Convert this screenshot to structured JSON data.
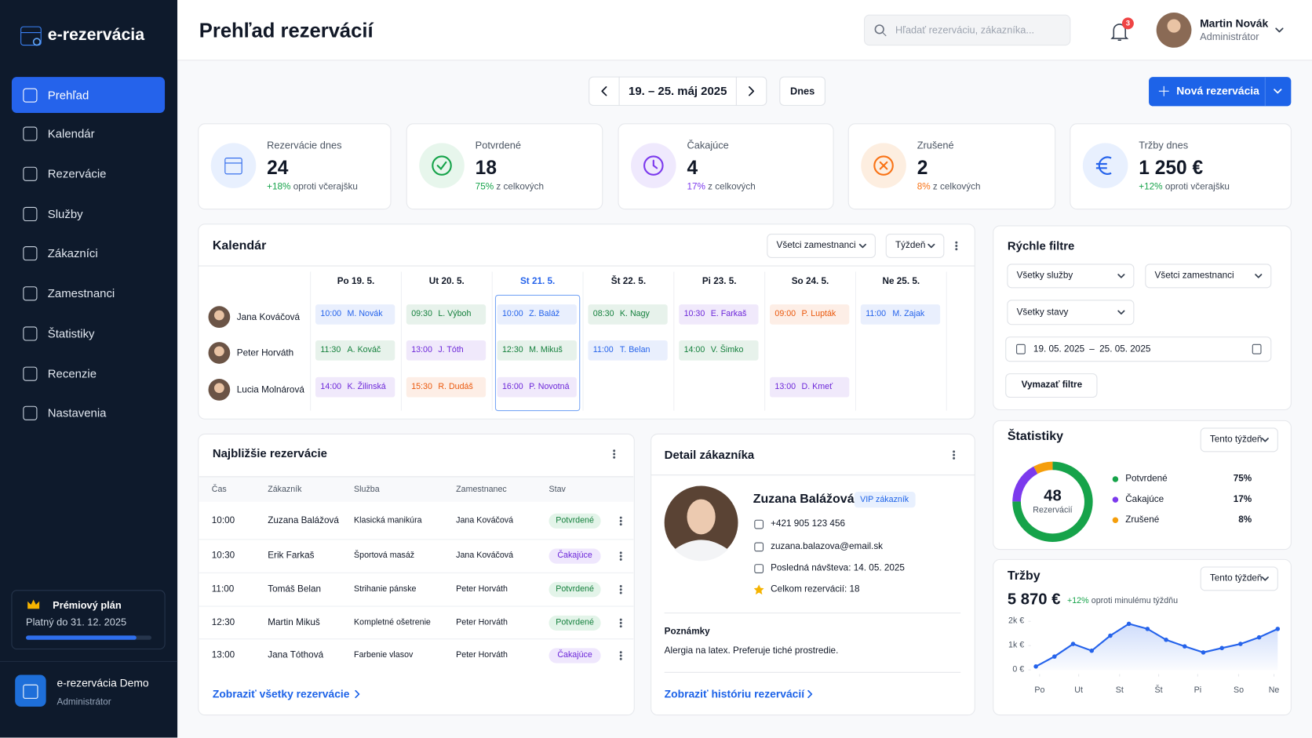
{
  "sidebar": {
    "brand": "e-rezervácia",
    "nav": [
      "Prehľad",
      "Kalendár",
      "Rezervácie",
      "Služby",
      "Zákazníci",
      "Zamestnanci",
      "Štatistiky",
      "Recenzie",
      "Nastavenia"
    ],
    "plan": {
      "title": "Prémiový plán",
      "valid": "Platný do 31. 12. 2025"
    },
    "account": {
      "name": "e-rezervácia Demo",
      "role": "Administrátor"
    }
  },
  "header": {
    "title": "Prehľad rezervácií",
    "search": "Hľadať rezerváciu, zákazníka...",
    "notifications": "3",
    "user": {
      "name": "Martin Novák",
      "role": "Administrátor"
    }
  },
  "toolbar": {
    "range": "19. – 25. máj 2025",
    "today": "Dnes",
    "new": "Nová rezervácia"
  },
  "stats": [
    {
      "label": "Rezervácie dnes",
      "value": "24",
      "delta": "+18%",
      "note": "oproti včerajšku"
    },
    {
      "label": "Potvrdené",
      "value": "18",
      "delta": "75%",
      "note": "z celkových"
    },
    {
      "label": "Čakajúce",
      "value": "4",
      "delta": "17%",
      "note": "z celkových"
    },
    {
      "label": "Zrušené",
      "value": "2",
      "delta": "8%",
      "note": "z celkových"
    },
    {
      "label": "Tržby dnes",
      "value": "1 250 €",
      "delta": "+12%",
      "note": "oproti včerajšku"
    }
  ],
  "calendar": {
    "title": "Kalendár",
    "filters": [
      "Všetci zamestnanci",
      "Týždeň"
    ],
    "days": [
      "Po 19. 5.",
      "Ut 20. 5.",
      "St 21. 5.",
      "Št 22. 5.",
      "Pi 23. 5.",
      "So 24. 5.",
      "Ne 25. 5."
    ],
    "staff": [
      "Jana Kováčová",
      "Peter Horváth",
      "Lucia Molnárová"
    ],
    "events": [
      [
        {
          "time": "10:00",
          "name": "M. Novák",
          "color": "#2563eb"
        },
        {
          "time": "09:30",
          "name": "L. Výboh",
          "color": "#15803d"
        },
        {
          "time": "10:00",
          "name": "Z. Baláž",
          "color": "#2563eb"
        },
        {
          "time": "08:30",
          "name": "K. Nagy",
          "color": "#15803d"
        },
        {
          "time": "10:30",
          "name": "E. Farkaš",
          "color": "#6d28d9"
        },
        {
          "time": "09:00",
          "name": "P. Lupták",
          "color": "#ea580c"
        },
        {
          "time": "11:00",
          "name": "M. Zajak",
          "color": "#2563eb"
        }
      ],
      [
        {
          "time": "11:30",
          "name": "A. Kováč",
          "color": "#15803d"
        },
        {
          "time": "13:00",
          "name": "J. Tóth",
          "color": "#6d28d9"
        },
        {
          "time": "12:30",
          "name": "M. Mikuš",
          "color": "#15803d"
        },
        {
          "time": "11:00",
          "name": "T. Belan",
          "color": "#2563eb"
        },
        {
          "time": "14:00",
          "name": "V. Šimko",
          "color": "#15803d"
        },
        null,
        null
      ],
      [
        {
          "time": "14:00",
          "name": "K. Žilinská",
          "color": "#6d28d9"
        },
        {
          "time": "15:30",
          "name": "R. Dudáš",
          "color": "#ea580c"
        },
        {
          "time": "16:00",
          "name": "P. Novotná",
          "color": "#6d28d9"
        },
        null,
        null,
        {
          "time": "13:00",
          "name": "D. Kmeť",
          "color": "#6d28d9"
        },
        null
      ]
    ]
  },
  "filters": {
    "title": "Rýchle filtre",
    "selects": [
      "Všetky služby",
      "Všetci zamestnanci",
      "Všetky stavy"
    ],
    "date_from": "19. 05. 2025",
    "date_sep": "–",
    "date_to": "25. 05. 2025",
    "clear": "Vymazať filtre"
  },
  "upcoming": {
    "title": "Najbližšie rezervácie",
    "columns": [
      "Čas",
      "Zákazník",
      "Služba",
      "Zamestnanec",
      "Stav"
    ],
    "rows": [
      [
        "10:00",
        "Zuzana Balážová",
        "Klasická manikúra",
        "Jana Kováčová",
        "Potvrdené"
      ],
      [
        "10:30",
        "Erik Farkaš",
        "Športová masáž",
        "Jana Kováčová",
        "Čakajúce"
      ],
      [
        "11:00",
        "Tomáš Belan",
        "Strihanie pánske",
        "Peter Horváth",
        "Potvrdené"
      ],
      [
        "12:30",
        "Martin Mikuš",
        "Kompletné ošetrenie",
        "Peter Horváth",
        "Potvrdené"
      ],
      [
        "13:00",
        "Jana Tóthová",
        "Farbenie vlasov",
        "Peter Horváth",
        "Čakajúce"
      ]
    ],
    "link": "Zobraziť všetky rezervácie"
  },
  "customer": {
    "title": "Detail zákazníka",
    "name": "Zuzana Balážová",
    "badge": "VIP zákazník",
    "phone": "+421 905 123 456",
    "email": "zuzana.balazova@email.sk",
    "last_visit": "Posledná návšteva: 14. 05. 2025",
    "total": "Celkom rezervácií: 18",
    "notes_title": "Poznámky",
    "notes": "Alergia na latex. Preferuje tiché prostredie.",
    "link": "Zobraziť históriu rezervácií"
  },
  "chart_data": [
    {
      "type": "pie",
      "title": "Štatistiky",
      "period": "Tento týždeň",
      "center_value": "48",
      "center_label": "Rezervácií",
      "categories": [
        "Potvrdené",
        "Čakajúce",
        "Zrušené"
      ],
      "values": [
        75,
        17,
        8
      ],
      "value_labels": [
        "75%",
        "17%",
        "8%"
      ],
      "colors": [
        "#16a34a",
        "#7c3aed",
        "#f59e0b"
      ]
    },
    {
      "type": "line",
      "title": "Tržby",
      "period": "Tento týždeň",
      "total": "5 870 €",
      "delta": "+12%",
      "delta_note": "oproti minulému týždňu",
      "x": [
        0,
        1,
        2,
        3,
        4,
        5,
        6,
        7,
        8,
        9,
        10,
        11,
        12,
        13
      ],
      "values": [
        140,
        550,
        1070,
        790,
        1410,
        1900,
        1690,
        1240,
        970,
        720,
        900,
        1070,
        1340,
        1690
      ],
      "color": "#2563eb",
      "xlim": [
        0,
        13
      ],
      "ylim": [
        0,
        2000
      ],
      "xticks": [
        {
          "value": 0.2,
          "label": "Po"
        },
        {
          "value": 2.3,
          "label": "Ut"
        },
        {
          "value": 4.5,
          "label": "St"
        },
        {
          "value": 6.6,
          "label": "Št"
        },
        {
          "value": 8.7,
          "label": "Pi"
        },
        {
          "value": 10.9,
          "label": "So"
        },
        {
          "value": 12.8,
          "label": "Ne"
        }
      ],
      "yticks": [
        {
          "value": 0,
          "label": "0 €"
        },
        {
          "value": 1000,
          "label": "1k €"
        },
        {
          "value": 2000,
          "label": "2k €"
        }
      ]
    }
  ]
}
